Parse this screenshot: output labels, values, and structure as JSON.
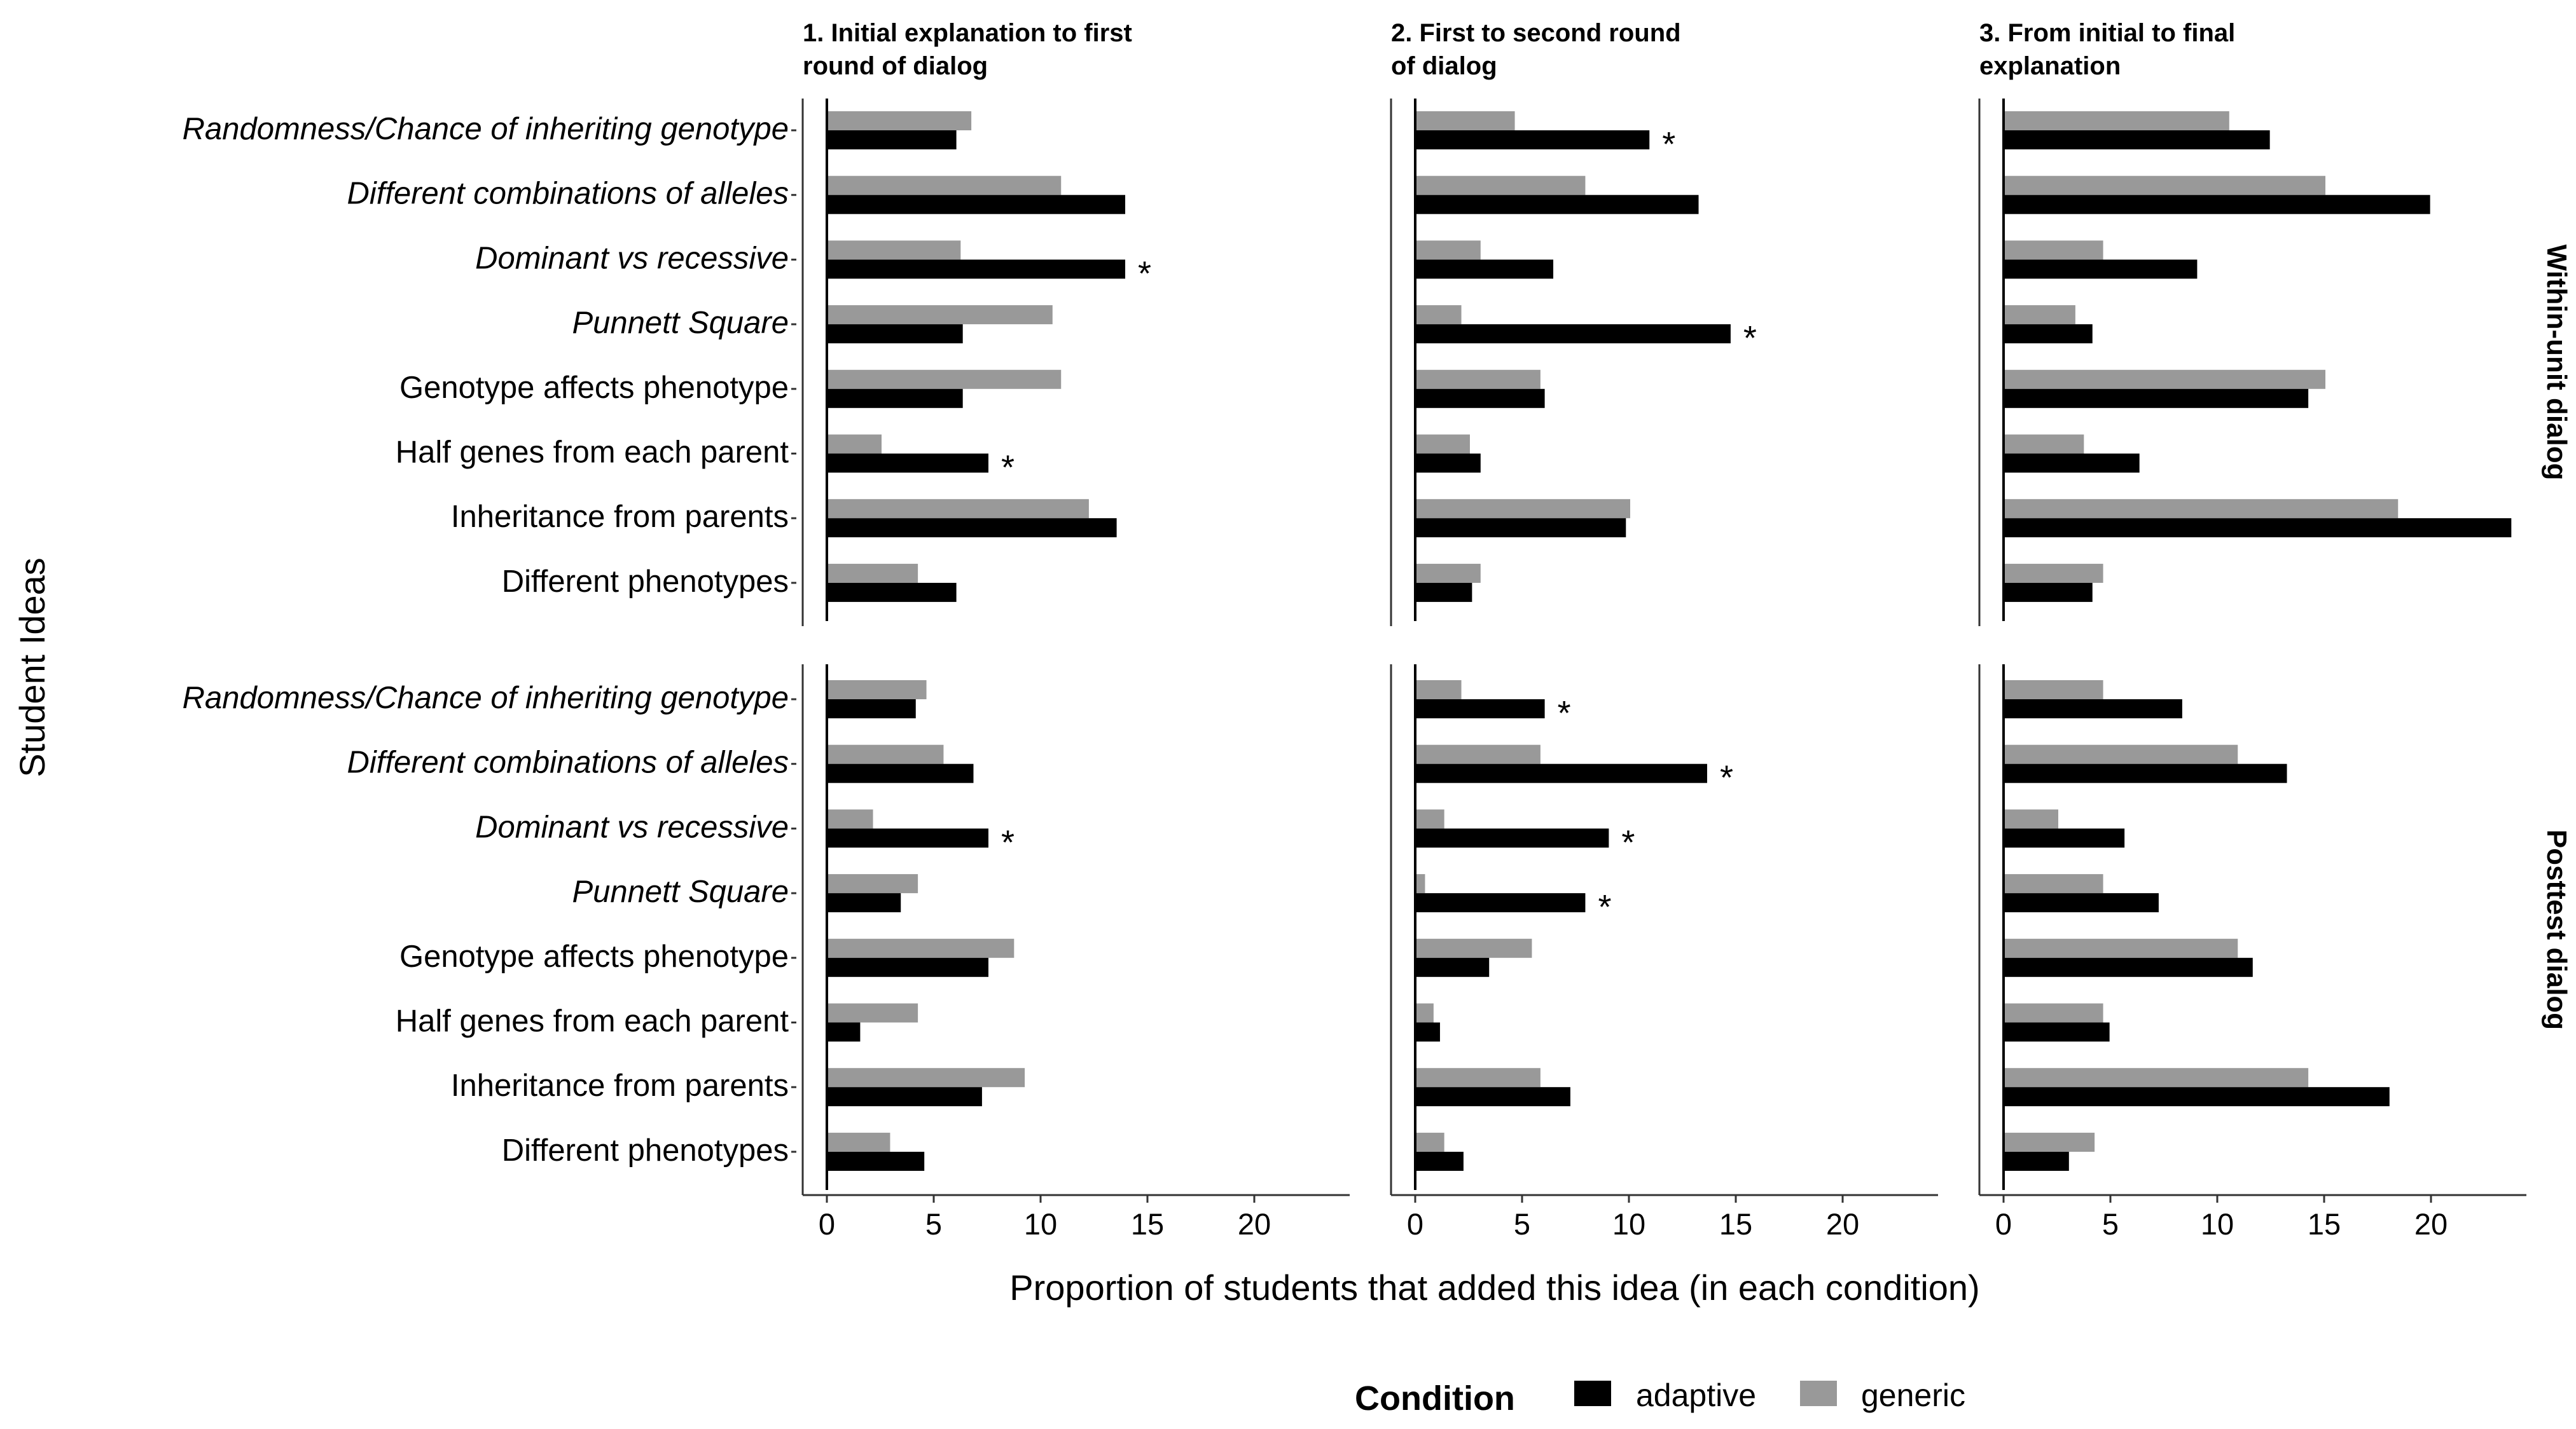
{
  "chart_data": {
    "type": "bar",
    "orientation": "horizontal",
    "xlabel": "Proportion of students that added this idea (in each condition)",
    "ylabel": "Student Ideas",
    "xlim": [
      0,
      24
    ],
    "xticks": [
      0,
      5,
      10,
      15,
      20
    ],
    "categories": [
      "Randomness/Chance of inheriting genotype",
      "Different combinations of alleles",
      "Dominant vs recessive",
      "Punnett Square",
      "Genotype affects phenotype",
      "Half genes from each parent",
      "Inheritance from parents",
      "Different phenotypes"
    ],
    "italic_categories": [
      true,
      true,
      true,
      true,
      false,
      false,
      false,
      false
    ],
    "columns": [
      "1. Initial explanation to first round of dialog",
      "2. First to second round of dialog",
      "3. From initial to final explanation"
    ],
    "column_lines": [
      [
        "1. Initial explanation to first",
        "round of dialog"
      ],
      [
        "2. First to second round",
        "of dialog"
      ],
      [
        "3. From initial to final",
        "explanation"
      ]
    ],
    "rows": [
      "Within-unit dialog",
      "Posttest dialog"
    ],
    "legend": {
      "title": "Condition",
      "position": "bottom",
      "items": [
        {
          "name": "adaptive",
          "color": "#000000"
        },
        {
          "name": "generic",
          "color": "#999999"
        }
      ]
    },
    "significance_marker": "*",
    "panels": [
      {
        "row": 0,
        "col": 0,
        "adaptive": [
          6.0,
          13.9,
          13.9,
          6.3,
          6.3,
          7.5,
          13.5,
          6.0
        ],
        "generic": [
          6.7,
          10.9,
          6.2,
          10.5,
          10.9,
          2.5,
          12.2,
          4.2
        ],
        "significant": [
          false,
          false,
          true,
          false,
          false,
          true,
          false,
          false
        ]
      },
      {
        "row": 0,
        "col": 1,
        "adaptive": [
          10.9,
          13.2,
          6.4,
          14.7,
          6.0,
          3.0,
          9.8,
          2.6
        ],
        "generic": [
          4.6,
          7.9,
          3.0,
          2.1,
          5.8,
          2.5,
          10.0,
          3.0
        ],
        "significant": [
          true,
          false,
          false,
          true,
          false,
          false,
          false,
          false
        ]
      },
      {
        "row": 0,
        "col": 2,
        "adaptive": [
          12.4,
          19.9,
          9.0,
          4.1,
          14.2,
          6.3,
          23.7,
          4.1
        ],
        "generic": [
          10.5,
          15.0,
          4.6,
          3.3,
          15.0,
          3.7,
          18.4,
          4.6
        ],
        "significant": [
          false,
          false,
          false,
          false,
          false,
          false,
          false,
          false
        ]
      },
      {
        "row": 1,
        "col": 0,
        "adaptive": [
          4.1,
          6.8,
          7.5,
          3.4,
          7.5,
          1.5,
          7.2,
          4.5
        ],
        "generic": [
          4.6,
          5.4,
          2.1,
          4.2,
          8.7,
          4.2,
          9.2,
          2.9
        ],
        "significant": [
          false,
          false,
          true,
          false,
          false,
          false,
          false,
          false
        ]
      },
      {
        "row": 1,
        "col": 1,
        "adaptive": [
          6.0,
          13.6,
          9.0,
          7.9,
          3.4,
          1.1,
          7.2,
          2.2
        ],
        "generic": [
          2.1,
          5.8,
          1.3,
          0.4,
          5.4,
          0.8,
          5.8,
          1.3
        ],
        "significant": [
          true,
          true,
          true,
          true,
          false,
          false,
          false,
          false
        ]
      },
      {
        "row": 1,
        "col": 2,
        "adaptive": [
          8.3,
          13.2,
          5.6,
          7.2,
          11.6,
          4.9,
          18.0,
          3.0
        ],
        "generic": [
          4.6,
          10.9,
          2.5,
          4.6,
          10.9,
          4.6,
          14.2,
          4.2
        ],
        "significant": [
          false,
          false,
          false,
          false,
          false,
          false,
          false,
          false
        ]
      }
    ]
  }
}
